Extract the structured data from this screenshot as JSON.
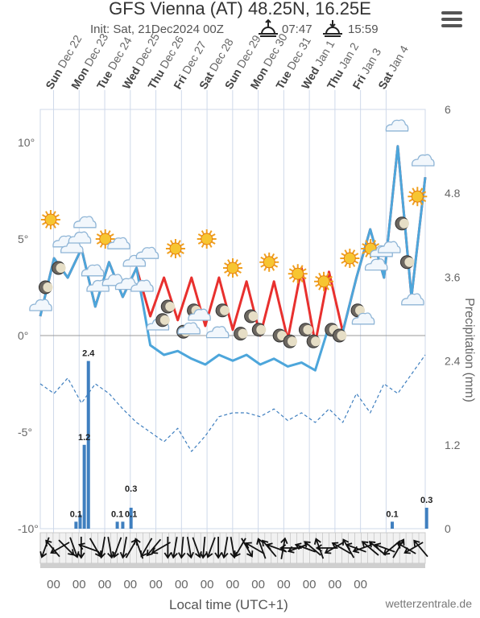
{
  "header": {
    "title": "GFS Vienna (AT) 48.25N, 16.25E",
    "init": "Init: Sat, 21Dec2024 00Z",
    "sunrise": "07:47",
    "sunset": "15:59"
  },
  "menu": {
    "icon": "hamburger-menu-icon"
  },
  "credit": "wetterzentrale.de",
  "chart_data": {
    "type": "line",
    "days": [
      {
        "dow": "Sun",
        "date": "Dec 22"
      },
      {
        "dow": "Mon",
        "date": "Dec 23"
      },
      {
        "dow": "Tue",
        "date": "Dec 24"
      },
      {
        "dow": "Wed",
        "date": "Dec 25"
      },
      {
        "dow": "Thu",
        "date": "Dec 26"
      },
      {
        "dow": "Fri",
        "date": "Dec 27"
      },
      {
        "dow": "Sat",
        "date": "Dec 28"
      },
      {
        "dow": "Sun",
        "date": "Dec 29"
      },
      {
        "dow": "Mon",
        "date": "Dec 30"
      },
      {
        "dow": "Tue",
        "date": "Dec 31"
      },
      {
        "dow": "Wed",
        "date": "Jan 1"
      },
      {
        "dow": "Thu",
        "date": "Jan 2"
      },
      {
        "dow": "Fri",
        "date": "Jan 3"
      },
      {
        "dow": "Sat",
        "date": "Jan 4"
      }
    ],
    "xlabel": "Local time (UTC+1)",
    "xtick_label": "00",
    "y_left": {
      "ticks": [
        "10°",
        "5°",
        "0°",
        "-5°",
        "-10°"
      ],
      "ylim": [
        -10,
        12
      ]
    },
    "y_right": {
      "label": "Precipitation (mm)",
      "ticks": [
        "6",
        "4.8",
        "3.6",
        "2.4",
        "1.2",
        "0"
      ],
      "ylim": [
        0,
        6
      ]
    },
    "series": [
      {
        "color": "#e8302e",
        "x": [
          0.0,
          0.5,
          1.0,
          1.5,
          2.0,
          2.5,
          3.0,
          3.5,
          4.0,
          4.5,
          5.0,
          5.5,
          6.0,
          6.5,
          7.0,
          7.5,
          8.0,
          8.5,
          9.0,
          9.5,
          10.0,
          10.5,
          11.0,
          11.5,
          12.0,
          12.5,
          13.0,
          13.5,
          14.0
        ],
        "values": [
          1.0,
          4.0,
          3.0,
          4.5,
          1.5,
          3.8,
          2.0,
          3.5,
          1.0,
          3.0,
          0.8,
          3.0,
          0.5,
          3.0,
          0.3,
          2.8,
          0.0,
          2.8,
          -0.2,
          3.5,
          -0.4,
          3.3,
          0.2,
          3.0,
          5.5,
          3.0,
          9.8,
          2.0,
          8.2
        ]
      },
      {
        "color": "#4da6db",
        "x": [
          0.0,
          0.5,
          1.0,
          1.5,
          2.0,
          2.5,
          3.0,
          3.5,
          4.0,
          4.5,
          5.0,
          5.5,
          6.0,
          6.5,
          7.0,
          7.5,
          8.0,
          8.5,
          9.0,
          9.5,
          10.0,
          10.5,
          11.0,
          11.5,
          12.0,
          12.5,
          13.0,
          13.5,
          14.0
        ],
        "values": [
          1.0,
          4.0,
          3.0,
          4.5,
          1.5,
          3.8,
          2.0,
          3.5,
          -0.5,
          -1.0,
          -0.8,
          -1.2,
          -1.5,
          -1.0,
          -1.3,
          -1.0,
          -1.5,
          -1.2,
          -1.6,
          -1.4,
          -1.8,
          0.5,
          0.2,
          3.0,
          5.5,
          3.0,
          9.8,
          2.0,
          8.2
        ]
      },
      {
        "color": "#3f7fbf",
        "dash": true,
        "x": [
          0.0,
          0.5,
          1.0,
          1.5,
          2.0,
          2.5,
          3.0,
          3.5,
          4.0,
          4.5,
          5.0,
          5.5,
          6.0,
          6.5,
          7.0,
          7.5,
          8.0,
          8.5,
          9.0,
          9.5,
          10.0,
          10.5,
          11.0,
          11.5,
          12.0,
          12.5,
          13.0,
          13.5,
          14.0
        ],
        "values": [
          -2.5,
          -3.0,
          -2.2,
          -3.5,
          -2.5,
          -3.0,
          -3.8,
          -4.5,
          -5.0,
          -5.5,
          -4.8,
          -6.0,
          -5.2,
          -4.2,
          -4.0,
          -4.0,
          -4.2,
          -3.8,
          -4.4,
          -4.0,
          -4.5,
          -3.8,
          -4.5,
          -3.0,
          -4.0,
          -2.5,
          -3.0,
          -2.0,
          -1.0
        ]
      }
    ],
    "precipitation": {
      "x": [
        1.3,
        1.45,
        1.6,
        1.75,
        2.8,
        3.0,
        3.3,
        12.8,
        14.05
      ],
      "values": [
        0.1,
        0.2,
        1.2,
        2.4,
        0.1,
        0.1,
        0.3,
        0.1,
        0.3
      ],
      "labels": [
        "0.1",
        "",
        "1.2",
        "2.4",
        "0.1",
        "",
        "0.1 / 0.3",
        "0.1",
        "0.3"
      ]
    },
    "data_labels": [
      "0.1",
      "1.2",
      "2.4",
      "0.1",
      "0.1",
      "0.3",
      "0.1",
      "0.3"
    ],
    "weather_icons": [
      {
        "x": 0.0,
        "t": 1.5,
        "kind": "cloud"
      },
      {
        "x": 0.2,
        "t": 2.5,
        "kind": "moon"
      },
      {
        "x": 0.4,
        "t": 6.0,
        "kind": "sun"
      },
      {
        "x": 0.7,
        "t": 3.5,
        "kind": "moon"
      },
      {
        "x": 0.9,
        "t": 4.8,
        "kind": "cloud"
      },
      {
        "x": 1.2,
        "t": 4.5,
        "kind": "cloud"
      },
      {
        "x": 1.5,
        "t": 5.0,
        "kind": "cloud"
      },
      {
        "x": 1.7,
        "t": 5.8,
        "kind": "cloud"
      },
      {
        "x": 2.0,
        "t": 3.3,
        "kind": "cloud"
      },
      {
        "x": 2.2,
        "t": 2.5,
        "kind": "cloud"
      },
      {
        "x": 2.5,
        "t": 5.0,
        "kind": "sun"
      },
      {
        "x": 2.8,
        "t": 2.8,
        "kind": "cloud"
      },
      {
        "x": 3.0,
        "t": 4.7,
        "kind": "cloud"
      },
      {
        "x": 3.3,
        "t": 2.6,
        "kind": "cloud"
      },
      {
        "x": 3.6,
        "t": 3.8,
        "kind": "cloud"
      },
      {
        "x": 3.9,
        "t": 2.5,
        "kind": "cloud"
      },
      {
        "x": 4.1,
        "t": 4.2,
        "kind": "cloud"
      },
      {
        "x": 4.5,
        "t": 0.5,
        "kind": "cloud"
      },
      {
        "x": 4.7,
        "t": 0.8,
        "kind": "moon"
      },
      {
        "x": 4.9,
        "t": 1.5,
        "kind": "moon"
      },
      {
        "x": 5.2,
        "t": 4.5,
        "kind": "sun"
      },
      {
        "x": 5.5,
        "t": 0.2,
        "kind": "moon"
      },
      {
        "x": 5.7,
        "t": 0.3,
        "kind": "cloud"
      },
      {
        "x": 5.9,
        "t": 1.3,
        "kind": "moon"
      },
      {
        "x": 6.1,
        "t": 1.0,
        "kind": "cloud"
      },
      {
        "x": 6.4,
        "t": 5.0,
        "kind": "sun"
      },
      {
        "x": 6.8,
        "t": 0.1,
        "kind": "cloud"
      },
      {
        "x": 7.0,
        "t": 1.3,
        "kind": "moon"
      },
      {
        "x": 7.4,
        "t": 3.5,
        "kind": "sun"
      },
      {
        "x": 7.7,
        "t": 0.1,
        "kind": "moon"
      },
      {
        "x": 8.1,
        "t": 1.0,
        "kind": "moon"
      },
      {
        "x": 8.4,
        "t": 0.3,
        "kind": "moon"
      },
      {
        "x": 8.8,
        "t": 3.8,
        "kind": "sun"
      },
      {
        "x": 9.2,
        "t": 0.0,
        "kind": "moon"
      },
      {
        "x": 9.6,
        "t": -0.3,
        "kind": "moon"
      },
      {
        "x": 9.9,
        "t": 3.2,
        "kind": "sun"
      },
      {
        "x": 10.2,
        "t": 0.3,
        "kind": "moon"
      },
      {
        "x": 10.5,
        "t": -0.3,
        "kind": "moon"
      },
      {
        "x": 10.9,
        "t": 2.8,
        "kind": "sun"
      },
      {
        "x": 11.2,
        "t": 0.3,
        "kind": "moon"
      },
      {
        "x": 11.5,
        "t": 0.0,
        "kind": "moon"
      },
      {
        "x": 11.9,
        "t": 4.0,
        "kind": "sun"
      },
      {
        "x": 12.2,
        "t": 1.3,
        "kind": "moon"
      },
      {
        "x": 12.4,
        "t": 0.8,
        "kind": "cloud"
      },
      {
        "x": 12.7,
        "t": 4.5,
        "kind": "sun"
      },
      {
        "x": 12.9,
        "t": 3.6,
        "kind": "cloud"
      },
      {
        "x": 13.1,
        "t": 4.3,
        "kind": "cloud"
      },
      {
        "x": 13.4,
        "t": 4.5,
        "kind": "cloud"
      },
      {
        "x": 13.7,
        "t": 10.8,
        "kind": "cloud"
      },
      {
        "x": 13.9,
        "t": 5.8,
        "kind": "moon"
      },
      {
        "x": 14.1,
        "t": 3.8,
        "kind": "moon"
      },
      {
        "x": 14.3,
        "t": 1.8,
        "kind": "cloud"
      },
      {
        "x": 14.5,
        "t": 7.2,
        "kind": "sun"
      },
      {
        "x": 14.7,
        "t": 9.0,
        "kind": "cloud"
      }
    ],
    "wind_directions_deg": [
      110,
      230,
      150,
      45,
      70,
      90,
      200,
      60,
      100,
      80,
      110,
      100,
      300,
      250,
      120,
      130,
      150,
      90,
      100,
      95,
      80,
      70,
      95,
      110,
      90,
      100,
      80,
      120,
      60,
      210,
      250,
      230,
      200,
      280,
      180,
      160,
      200,
      220,
      250,
      180,
      150,
      210,
      240,
      200,
      160,
      220,
      220,
      200,
      140,
      300,
      210,
      150,
      230
    ],
    "legend_colors": {
      "tmax": "#e8302e",
      "tmin": "#4da6db",
      "dewpoint": "#3f7fbf",
      "precip": "#3f7fbf"
    }
  }
}
